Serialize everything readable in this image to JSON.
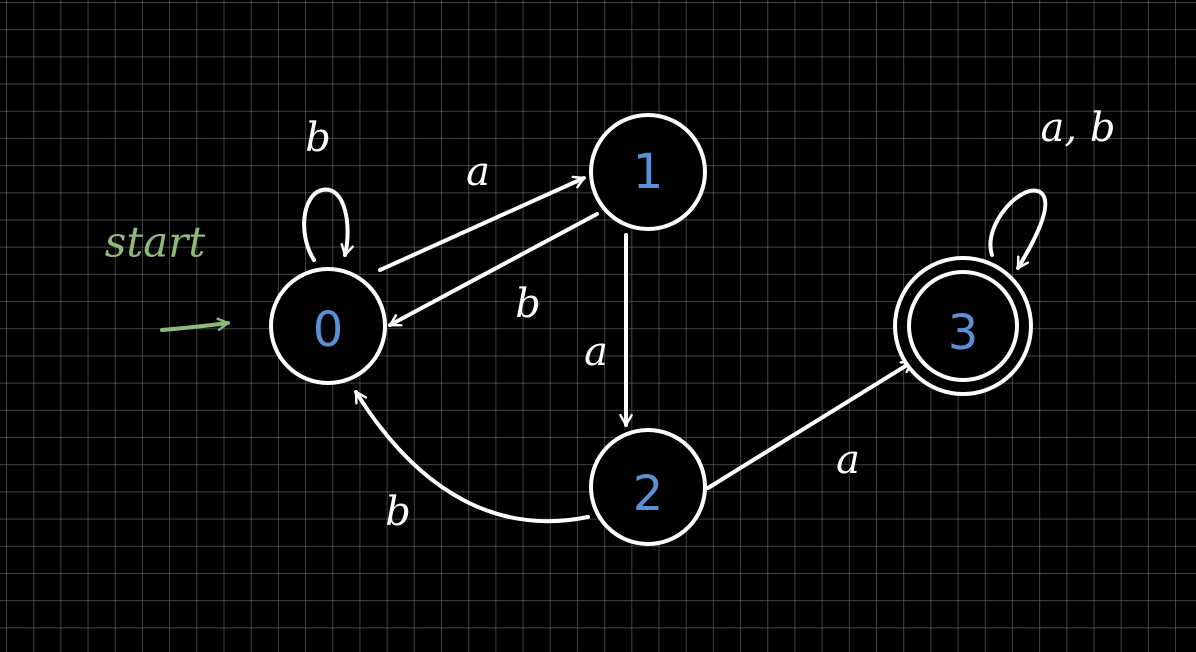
{
  "start_label": "start",
  "states": [
    {
      "id": "0",
      "label": "0",
      "accepting": false
    },
    {
      "id": "1",
      "label": "1",
      "accepting": false
    },
    {
      "id": "2",
      "label": "2",
      "accepting": false
    },
    {
      "id": "3",
      "label": "3",
      "accepting": true
    }
  ],
  "transitions": [
    {
      "from": "0",
      "to": "0",
      "label": "b"
    },
    {
      "from": "0",
      "to": "1",
      "label": "a"
    },
    {
      "from": "1",
      "to": "0",
      "label": "b"
    },
    {
      "from": "1",
      "to": "2",
      "label": "a"
    },
    {
      "from": "2",
      "to": "0",
      "label": "b"
    },
    {
      "from": "2",
      "to": "3",
      "label": "a"
    },
    {
      "from": "3",
      "to": "3",
      "label": "a, b"
    }
  ],
  "colors": {
    "background": "#000000",
    "grid": "#787878",
    "edges": "#ffffff",
    "state_labels": "#5b8fd6",
    "start": "#8fb97a"
  }
}
